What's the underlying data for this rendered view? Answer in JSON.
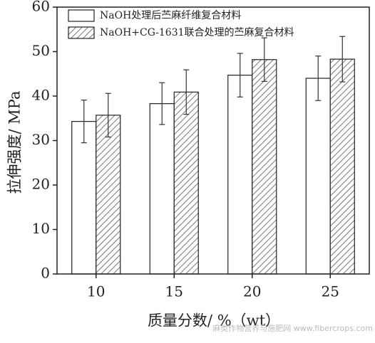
{
  "chart_data": {
    "type": "bar",
    "x_label": "质量分数/ %（wt）",
    "y_label": "拉伸强度/ MPa",
    "categories": [
      "10",
      "15",
      "20",
      "25"
    ],
    "series": [
      {
        "name": "NaOH处理后苎麻纤维复合材料",
        "color": "#ffffff",
        "hatch": false,
        "values": [
          34.3,
          38.3,
          44.7,
          44.0
        ],
        "errors": [
          4.8,
          4.7,
          4.9,
          5.0
        ]
      },
      {
        "name": "NaOH+CG-1631联合处理的苎麻复合材料",
        "color": "#ffffff",
        "hatch": true,
        "values": [
          35.7,
          40.9,
          48.2,
          48.3
        ],
        "errors": [
          4.9,
          5.0,
          4.9,
          5.1
        ]
      }
    ],
    "ylim": [
      0,
      60
    ],
    "yticks": [
      0,
      10,
      20,
      30,
      40,
      50,
      60
    ],
    "watermark": "麻类作物营养与施肥网 www.fibercrops.com"
  }
}
